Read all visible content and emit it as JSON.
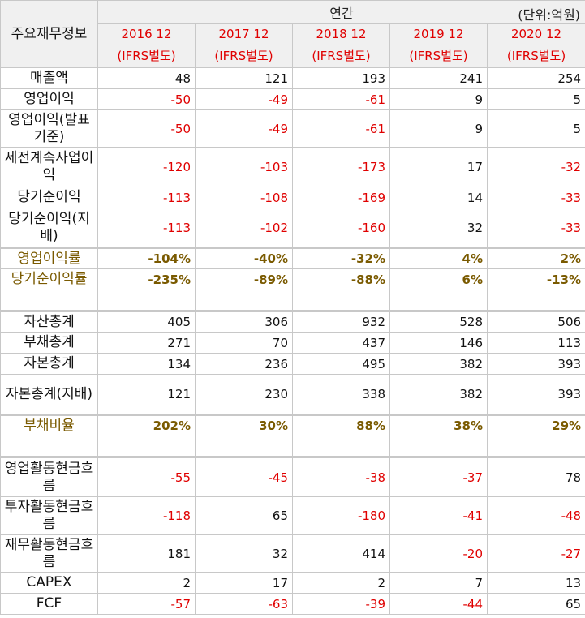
{
  "header": {
    "corner": "주요재무정보",
    "period": "연간",
    "unit": "(단위:억원)",
    "columns": [
      {
        "date": "2016 12",
        "basis": "(IFRS별도)"
      },
      {
        "date": "2017 12",
        "basis": "(IFRS별도)"
      },
      {
        "date": "2018 12",
        "basis": "(IFRS별도)"
      },
      {
        "date": "2019 12",
        "basis": "(IFRS별도)"
      },
      {
        "date": "2020 12",
        "basis": "(IFRS별도)"
      }
    ]
  },
  "sections": [
    {
      "rows": [
        {
          "label": "매출액",
          "values": [
            "48",
            "121",
            "193",
            "241",
            "254"
          ]
        },
        {
          "label": "영업이익",
          "values": [
            "-50",
            "-49",
            "-61",
            "9",
            "5"
          ]
        },
        {
          "label": "영업이익(발표기준)",
          "values": [
            "-50",
            "-49",
            "-61",
            "9",
            "5"
          ]
        },
        {
          "label": "세전계속사업이익",
          "values": [
            "-120",
            "-103",
            "-173",
            "17",
            "-32"
          ]
        },
        {
          "label": "당기순이익",
          "values": [
            "-113",
            "-108",
            "-169",
            "14",
            "-33"
          ]
        },
        {
          "label": "당기순이익(지배)",
          "values": [
            "-113",
            "-102",
            "-160",
            "32",
            "-33"
          ]
        }
      ]
    },
    {
      "rows": [
        {
          "label": "영업이익률",
          "values": [
            "-104%",
            "-40%",
            "-32%",
            "4%",
            "2%"
          ]
        },
        {
          "label": "당기순이익률",
          "values": [
            "-235%",
            "-89%",
            "-88%",
            "6%",
            "-13%"
          ]
        }
      ]
    },
    {
      "rows": [
        {
          "label": "자산총계",
          "values": [
            "405",
            "306",
            "932",
            "528",
            "506"
          ]
        },
        {
          "label": "부채총계",
          "values": [
            "271",
            "70",
            "437",
            "146",
            "113"
          ]
        },
        {
          "label": "자본총계",
          "values": [
            "134",
            "236",
            "495",
            "382",
            "393"
          ]
        },
        {
          "label": "자본총계(지배)",
          "values": [
            "121",
            "230",
            "338",
            "382",
            "393"
          ]
        }
      ]
    },
    {
      "rows": [
        {
          "label": "부채비율",
          "values": [
            "202%",
            "30%",
            "88%",
            "38%",
            "29%"
          ]
        }
      ]
    },
    {
      "rows": [
        {
          "label": "영업활동현금흐름",
          "values": [
            "-55",
            "-45",
            "-38",
            "-37",
            "78"
          ]
        },
        {
          "label": "투자활동현금흐름",
          "values": [
            "-118",
            "65",
            "-180",
            "-41",
            "-48"
          ]
        },
        {
          "label": "재무활동현금흐름",
          "values": [
            "181",
            "32",
            "414",
            "-20",
            "-27"
          ]
        },
        {
          "label": "CAPEX",
          "values": [
            "2",
            "17",
            "2",
            "7",
            "13"
          ]
        },
        {
          "label": "FCF",
          "values": [
            "-57",
            "-63",
            "-39",
            "-44",
            "65"
          ]
        }
      ]
    }
  ]
}
